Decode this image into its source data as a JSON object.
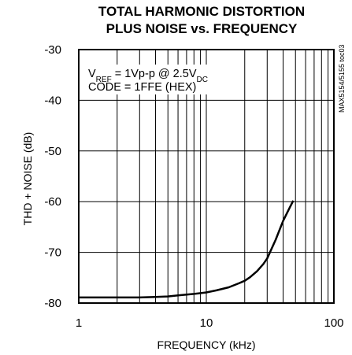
{
  "chart_data": {
    "type": "line",
    "title_line1": "TOTAL HARMONIC DISTORTION",
    "title_line2": "PLUS NOISE vs. FREQUENCY",
    "xlabel": "FREQUENCY (kHz)",
    "ylabel": "THD + NOISE (dB)",
    "xscale": "log",
    "xlim": [
      1,
      100
    ],
    "ylim": [
      -80,
      -30
    ],
    "x_ticks": [
      "1",
      "10",
      "100"
    ],
    "y_ticks": [
      "-30",
      "-40",
      "-50",
      "-60",
      "-70",
      "-80"
    ],
    "grid": true,
    "annotation": {
      "line1_pre": "V",
      "line1_sub": "REF",
      "line1_mid": " = 1Vp-p @ 2.5V",
      "line1_sub2": "DC",
      "line2": "CODE = 1FFE (HEX)"
    },
    "figure_code": "MAX5154/5155 toc03",
    "series": [
      {
        "x": [
          1,
          2,
          3,
          4,
          5,
          6,
          8,
          10,
          12,
          15,
          18,
          20,
          22,
          25,
          28,
          30,
          35,
          40,
          45,
          48
        ],
        "y": [
          -78.9,
          -78.9,
          -78.9,
          -78.8,
          -78.7,
          -78.5,
          -78.2,
          -77.9,
          -77.5,
          -76.9,
          -76.1,
          -75.6,
          -74.9,
          -73.7,
          -72.3,
          -71.2,
          -67.5,
          -63.8,
          -61.2,
          -59.8
        ]
      }
    ]
  }
}
